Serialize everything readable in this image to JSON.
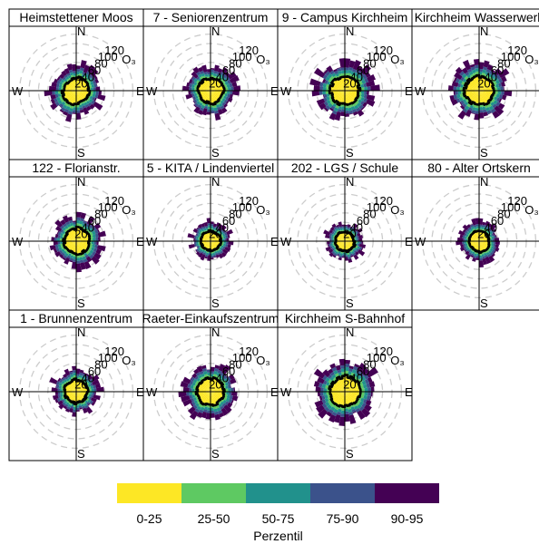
{
  "chart_data": {
    "type": "polar-percentile",
    "pollutant": "O₃",
    "rings": [
      20,
      40,
      60,
      80,
      100,
      120
    ],
    "directions": [
      "N",
      "E",
      "S",
      "W"
    ],
    "panels": [
      {
        "title": "Heimstettener Moos",
        "scale": 0.92,
        "seed": 1,
        "shape": [
          1.0,
          0.95,
          1.05,
          0.9
        ]
      },
      {
        "title": "7 - Seniorenzentrum",
        "scale": 0.92,
        "seed": 2,
        "shape": [
          1.0,
          1.0,
          0.95,
          0.95
        ]
      },
      {
        "title": "9 - Campus Kirchheim",
        "scale": 1.0,
        "seed": 3,
        "shape": [
          1.05,
          1.0,
          1.0,
          1.0
        ]
      },
      {
        "title": "Kirchheim Wasserwerk",
        "scale": 1.02,
        "seed": 4,
        "shape": [
          1.0,
          1.0,
          1.0,
          1.0
        ]
      },
      {
        "title": "122 - Florianstr.",
        "scale": 0.9,
        "seed": 5,
        "shape": [
          1.05,
          1.0,
          0.95,
          0.95
        ]
      },
      {
        "title": "5 - KITA / Lindenviertel",
        "scale": 0.7,
        "seed": 6,
        "shape": [
          1.0,
          1.0,
          0.95,
          1.05
        ]
      },
      {
        "title": "202 - LGS / Schule",
        "scale": 0.68,
        "seed": 7,
        "shape": [
          0.95,
          1.05,
          1.0,
          1.0
        ]
      },
      {
        "title": "80 - Alter Ortskern",
        "scale": 0.72,
        "seed": 8,
        "shape": [
          1.0,
          1.05,
          0.95,
          1.0
        ]
      },
      {
        "title": "1 - Brunnenzentrum",
        "scale": 0.8,
        "seed": 9,
        "shape": [
          1.0,
          0.95,
          1.0,
          1.05
        ]
      },
      {
        "title": "Raeter-Einkaufszentrum",
        "scale": 0.95,
        "seed": 10,
        "shape": [
          1.0,
          1.0,
          1.0,
          1.0
        ]
      },
      {
        "title": "Kirchheim S-Bahnhof",
        "scale": 1.05,
        "seed": 11,
        "shape": [
          1.05,
          1.0,
          1.0,
          1.0
        ]
      }
    ],
    "legend": {
      "title": "Perzentil",
      "entries": [
        {
          "label": "0-25",
          "color": "#fde725"
        },
        {
          "label": "25-50",
          "color": "#5ec962"
        },
        {
          "label": "50-75",
          "color": "#21918c"
        },
        {
          "label": "75-90",
          "color": "#3b528b"
        },
        {
          "label": "90-95",
          "color": "#440154"
        }
      ]
    },
    "median_line_color": "#000000",
    "grid": true
  }
}
